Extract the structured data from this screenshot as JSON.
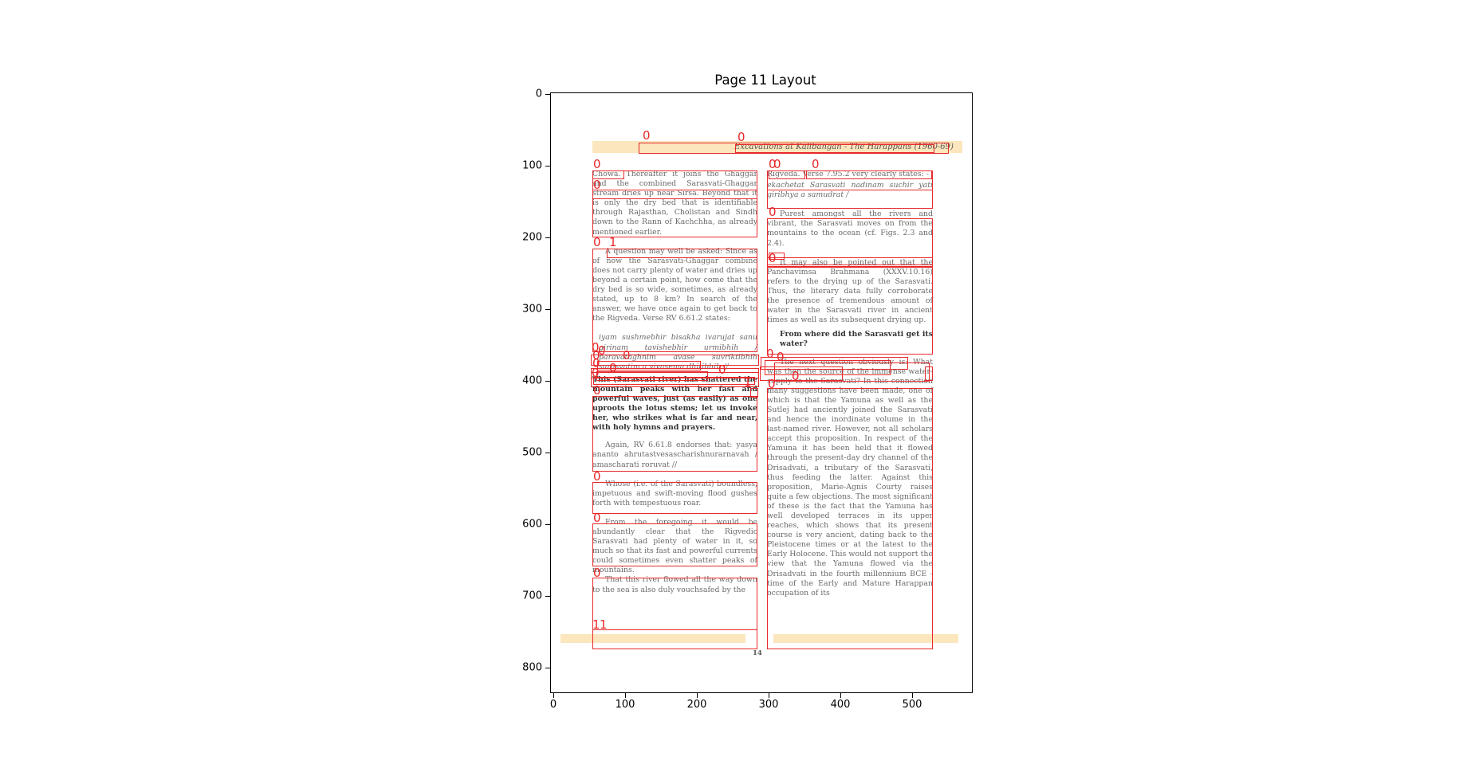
{
  "figure": {
    "title": "Page 11 Layout",
    "y_ticks": [
      "0",
      "100",
      "200",
      "300",
      "400",
      "500",
      "600",
      "700",
      "800"
    ],
    "x_ticks": [
      "0",
      "100",
      "200",
      "300",
      "400",
      "500"
    ]
  },
  "page": {
    "running_head": "Excavations at Kalibangan - The Harappans (1960-69)",
    "page_number": "14",
    "left_column": [
      "Chowa. Thereafter it joins the Ghaggar and the combined Sarasvati-Ghaggar stream dries up near Sirsa. Beyond that it is only the dry bed that is identifiable through Rajasthan, Cholistan and Sindh down to the Rann of Kachchha, as already mentioned earlier.",
      "A question may well be asked: Since as of now the Sarasvati-Ghaggar combine does not carry plenty of water and dries up beyond a certain point, how come that the dry bed is so wide, sometimes, as already stated, up to 8 km? In search of the answer, we have once again to get back to the Rigveda. Verse RV 6.61.2 states:",
      "iyam sushmebhir bisakha ivarujat sanu girinam tavishebhir urmibhih / paravataghnim avase suvriktibhih sarasvatim a vivasema dhitibhih //",
      "This (Sarasvati river) has shattered the mountain peaks with her fast and powerful waves, just (as easily) as one uproots the lotus stems; let us invoke her, who strikes what is far and near, with holy hymns and prayers.",
      "Again, RV 6.61.8 endorses that: yasya ananto ahrutastvesascharishnurarnavah / amascharati roruvat //",
      "Whose (i.e. of the Sarasvati) boundless, impetuous and swift-moving flood gushes forth with tempestuous roar.",
      "From the foregoing it would be abundantly clear that the Rigvedic Sarasvati had plenty of water in it, so much so that its fast and powerful currents could sometimes even shatter peaks of mountains.",
      "That this river flowed all the way down to the sea is also duly vouchsafed by the"
    ],
    "right_column": [
      "Rigveda. Verse 7.95.2 very clearly states: -",
      "ekachetat Sarasvati nadinam suchir yati giribhya a samudrat /",
      "Purest amongst all the rivers and vibrant, the Sarasvati moves on from the mountains to the ocean (cf. Figs. 2.3 and 2.4).",
      "It may also be pointed out that the Panchavimsa Brahmana (XXXV.10.16) refers to the drying up of the Sarasvati. Thus, the literary data fully corroborate the presence of tremendous amount of water in the Sarasvati river in ancient times as well as its subsequent drying up.",
      "From where did the Sarasvati get its water?",
      "The next question obviously is: What was then the source of the immense water-supply to the Sarasvati? In this connection many suggestions have been made, one of which is that the Yamuna as well as the Sutlej had anciently joined the Sarasvati and hence the inordinate volume in the last-named river. However, not all scholars accept this proposition. In respect of the Yamuna it has been held that it flowed through the present-day dry channel of the Drisadvati, a tributary of the Sarasvati, thus feeding the latter. Against this proposition, Marie-Agnis Courty raises quite a few objections. The most significant of these is the fact that the Yamuna has well developed terraces in its upper reaches, which shows that its present course is very ancient, dating back to the Pleistocene times or at the latest to the Early Holocene. This would not support the view that the Yamuna flowed via the Drisadvati in the fourth millennium BCE - time of the Early and Mature Harappan occupation of its"
    ]
  },
  "layout_labels": [
    "0",
    "0",
    "0",
    "0",
    "0",
    "0",
    "0",
    "0",
    "0",
    "0",
    "0",
    "0",
    "0",
    "0",
    "0",
    "0",
    "0",
    "0",
    "0",
    "0",
    "0",
    "0",
    "0",
    "0",
    "0",
    "1",
    "1",
    "1",
    "0"
  ],
  "colors": {
    "box": "#e8282a",
    "bar": "#fbe6bd"
  }
}
